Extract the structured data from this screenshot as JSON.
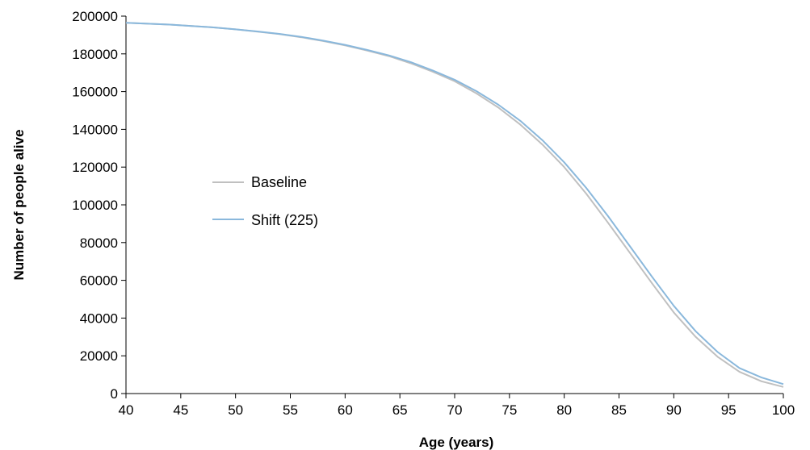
{
  "chart_data": {
    "type": "line",
    "title": "",
    "xlabel": "Age (years)",
    "ylabel": "Number of people alive",
    "xlim": [
      40,
      100
    ],
    "ylim": [
      0,
      200000
    ],
    "xticks": [
      40,
      45,
      50,
      55,
      60,
      65,
      70,
      75,
      80,
      85,
      90,
      95,
      100
    ],
    "yticks": [
      0,
      20000,
      40000,
      60000,
      80000,
      100000,
      120000,
      140000,
      160000,
      180000,
      200000
    ],
    "grid": false,
    "legend_position": "center-left",
    "series": [
      {
        "name": "Baseline",
        "color": "#c0c0c0",
        "x": [
          40,
          42,
          44,
          46,
          48,
          50,
          52,
          54,
          56,
          58,
          60,
          62,
          64,
          66,
          68,
          70,
          72,
          74,
          76,
          78,
          80,
          82,
          84,
          86,
          88,
          90,
          92,
          94,
          96,
          98,
          100
        ],
        "y": [
          196500,
          196000,
          195500,
          194800,
          194000,
          193000,
          191800,
          190500,
          188800,
          186800,
          184500,
          181800,
          178800,
          175000,
          170500,
          165500,
          159000,
          151500,
          142500,
          132000,
          120000,
          106000,
          90500,
          74500,
          58500,
          43000,
          30000,
          19500,
          11500,
          6500,
          3500
        ]
      },
      {
        "name": "Shift (225)",
        "color": "#8ab8dc",
        "x": [
          40,
          42,
          44,
          46,
          48,
          50,
          52,
          54,
          56,
          58,
          60,
          62,
          64,
          66,
          68,
          70,
          72,
          74,
          76,
          78,
          80,
          82,
          84,
          86,
          88,
          90,
          92,
          94,
          96,
          98,
          100
        ],
        "y": [
          196500,
          196000,
          195500,
          194800,
          194000,
          193000,
          191900,
          190600,
          189000,
          187000,
          184800,
          182100,
          179200,
          175600,
          171200,
          166300,
          160200,
          153000,
          144500,
          134300,
          122500,
          109000,
          94000,
          78000,
          62000,
          46500,
          33000,
          22000,
          13500,
          8500,
          5000
        ]
      }
    ]
  }
}
